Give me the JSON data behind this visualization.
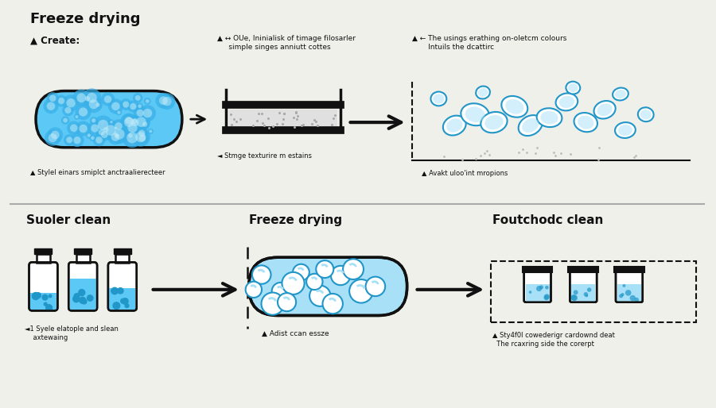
{
  "title_top": "Freeze drying",
  "bg_color": "#f0f0eb",
  "blue_fill": "#5bc8f5",
  "blue_dark": "#2196c8",
  "blue_light": "#a8e0f8",
  "outline_color": "#111111",
  "text_color": "#111111",
  "top_row": {
    "step1_title": "▲ Create:",
    "step1_caption": "▲ Stylel einars smiplct anctraalierecteer",
    "step2_title": "▲ ↔ OUe, Ininialisk of timage filosarler\n     simple singes anniutt cottes",
    "step2_caption": "◄ Stmge texturire m estains",
    "step3_title": "▲ ← The usings erathing on-oletcm colours\n       Intuils the dcattirc",
    "step3_caption": "▲ Avakt uloo'int mropions"
  },
  "bottom_row": {
    "step1_title": "Suoler clean",
    "step1_caption": "◄1 Syele elatople and slean\n    axtewaing",
    "step2_title": "Freeze drying",
    "step2_caption": "▲ Adist ccan essze",
    "step3_title": "Foutchodc clean",
    "step3_caption": "▲ Sty4f0l cowederigr cardownd deat\n  The rcaxring side the corerpt"
  }
}
